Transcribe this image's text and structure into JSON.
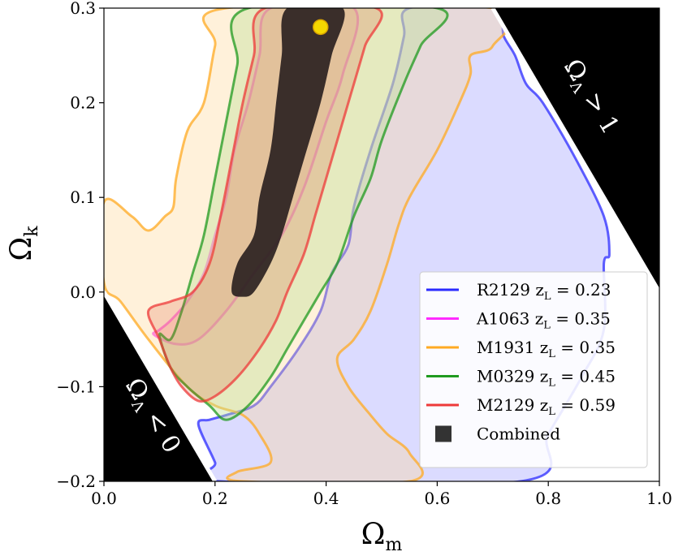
{
  "chart_data": {
    "type": "contour",
    "xlabel": "Ω",
    "xlabel_sub": "m",
    "ylabel": "Ω",
    "ylabel_sub": "k",
    "xlim": [
      0.0,
      1.0
    ],
    "ylim": [
      -0.2,
      0.3
    ],
    "xticks": [
      "0.0",
      "0.2",
      "0.4",
      "0.6",
      "0.8",
      "1.0"
    ],
    "yticks": [
      "−0.2",
      "−0.1",
      "0.0",
      "0.1",
      "0.2",
      "0.3"
    ],
    "xtick_values": [
      0.0,
      0.2,
      0.4,
      0.6,
      0.8,
      1.0
    ],
    "ytick_values": [
      -0.2,
      -0.1,
      0.0,
      0.1,
      0.2,
      0.3
    ],
    "excluded_regions": [
      {
        "name": "lower-left",
        "label": "Ω",
        "sub": "Λ",
        "rest": " < 0",
        "corners": [
          [
            0.0,
            0.0
          ],
          [
            0.0,
            -0.2
          ],
          [
            0.2,
            -0.2
          ]
        ]
      },
      {
        "name": "upper-right",
        "label": "Ω",
        "sub": "Λ",
        "rest": " > 1",
        "corners": [
          [
            0.7,
            0.3
          ],
          [
            1.0,
            0.3
          ],
          [
            1.0,
            0.0
          ]
        ]
      }
    ],
    "fiducial_point": {
      "x": 0.39,
      "y": 0.28,
      "color": "#f5d800"
    },
    "series": [
      {
        "name": "R2129",
        "label": "R2129 z",
        "sub": "L",
        "value": " = 0.23",
        "color": "#2b2bff",
        "fill": "rgba(160,160,255,0.38)",
        "outline": [
          [
            0.55,
            0.3
          ],
          [
            0.54,
            0.27
          ],
          [
            0.52,
            0.22
          ],
          [
            0.48,
            0.15
          ],
          [
            0.45,
            0.09
          ],
          [
            0.44,
            0.05
          ],
          [
            0.41,
            0.02
          ],
          [
            0.39,
            -0.02
          ],
          [
            0.35,
            -0.06
          ],
          [
            0.3,
            -0.1
          ],
          [
            0.27,
            -0.12
          ],
          [
            0.22,
            -0.13
          ],
          [
            0.19,
            -0.135
          ],
          [
            0.17,
            -0.14
          ],
          [
            0.2,
            -0.18
          ],
          [
            0.21,
            -0.2
          ],
          [
            0.75,
            -0.2
          ],
          [
            0.8,
            -0.15
          ],
          [
            0.86,
            -0.09
          ],
          [
            0.9,
            -0.04
          ],
          [
            0.9,
            0.03
          ],
          [
            0.91,
            0.04
          ],
          [
            0.9,
            0.08
          ],
          [
            0.85,
            0.14
          ],
          [
            0.79,
            0.2
          ],
          [
            0.76,
            0.22
          ],
          [
            0.74,
            0.25
          ],
          [
            0.72,
            0.27
          ],
          [
            0.7,
            0.3
          ]
        ]
      },
      {
        "name": "A1063",
        "label": "A1063 z",
        "sub": "L",
        "value": " = 0.35",
        "color": "#ff2bff",
        "fill": "rgba(255,140,180,0.28)",
        "outline": [
          [
            0.3,
            0.3
          ],
          [
            0.28,
            0.25
          ],
          [
            0.26,
            0.2
          ],
          [
            0.235,
            0.15
          ],
          [
            0.22,
            0.1
          ],
          [
            0.2,
            0.06
          ],
          [
            0.18,
            0.02
          ],
          [
            0.15,
            -0.01
          ],
          [
            0.12,
            -0.03
          ],
          [
            0.1,
            -0.04
          ],
          [
            0.09,
            -0.045
          ],
          [
            0.13,
            -0.055
          ],
          [
            0.17,
            -0.05
          ],
          [
            0.22,
            -0.02
          ],
          [
            0.27,
            0.02
          ],
          [
            0.32,
            0.06
          ],
          [
            0.36,
            0.11
          ],
          [
            0.4,
            0.18
          ],
          [
            0.43,
            0.23
          ],
          [
            0.45,
            0.3
          ]
        ]
      },
      {
        "name": "M1931",
        "label": "M1931 z",
        "sub": "L",
        "value": " = 0.35",
        "color": "#ffaa22",
        "fill": "rgba(255,215,150,0.35)",
        "outline": [
          [
            0.22,
            0.3
          ],
          [
            0.2,
            0.26
          ],
          [
            0.18,
            0.2
          ],
          [
            0.15,
            0.17
          ],
          [
            0.13,
            0.12
          ],
          [
            0.125,
            0.09
          ],
          [
            0.11,
            0.08
          ],
          [
            0.08,
            0.065
          ],
          [
            0.05,
            0.08
          ],
          [
            0.0,
            0.095
          ],
          [
            0.0,
            0.01
          ],
          [
            0.03,
            -0.01
          ],
          [
            0.08,
            -0.05
          ],
          [
            0.15,
            -0.1
          ],
          [
            0.2,
            -0.12
          ],
          [
            0.25,
            -0.13
          ],
          [
            0.28,
            -0.15
          ],
          [
            0.3,
            -0.18
          ],
          [
            0.24,
            -0.19
          ],
          [
            0.25,
            -0.2
          ],
          [
            0.55,
            -0.2
          ],
          [
            0.55,
            -0.17
          ],
          [
            0.51,
            -0.15
          ],
          [
            0.48,
            -0.13
          ],
          [
            0.44,
            -0.1
          ],
          [
            0.42,
            -0.07
          ],
          [
            0.45,
            -0.05
          ],
          [
            0.48,
            -0.02
          ],
          [
            0.51,
            0.03
          ],
          [
            0.53,
            0.07
          ],
          [
            0.55,
            0.1
          ],
          [
            0.6,
            0.15
          ],
          [
            0.64,
            0.2
          ],
          [
            0.66,
            0.23
          ],
          [
            0.66,
            0.25
          ],
          [
            0.7,
            0.26
          ],
          [
            0.7,
            0.3
          ]
        ]
      },
      {
        "name": "M0329",
        "label": "M0329 z",
        "sub": "L",
        "value": " = 0.45",
        "color": "#1f9a1f",
        "fill": "rgba(190,225,150,0.4)",
        "outline": [
          [
            0.26,
            0.3
          ],
          [
            0.24,
            0.24
          ],
          [
            0.22,
            0.18
          ],
          [
            0.2,
            0.12
          ],
          [
            0.18,
            0.06
          ],
          [
            0.16,
            0.02
          ],
          [
            0.14,
            -0.02
          ],
          [
            0.12,
            -0.05
          ],
          [
            0.1,
            -0.045
          ],
          [
            0.12,
            -0.08
          ],
          [
            0.15,
            -0.1
          ],
          [
            0.19,
            -0.12
          ],
          [
            0.22,
            -0.135
          ],
          [
            0.26,
            -0.12
          ],
          [
            0.3,
            -0.09
          ],
          [
            0.33,
            -0.06
          ],
          [
            0.36,
            -0.03
          ],
          [
            0.39,
            0.0
          ],
          [
            0.42,
            0.03
          ],
          [
            0.45,
            0.08
          ],
          [
            0.48,
            0.12
          ],
          [
            0.5,
            0.16
          ],
          [
            0.54,
            0.22
          ],
          [
            0.57,
            0.26
          ],
          [
            0.6,
            0.3
          ]
        ]
      },
      {
        "name": "M2129",
        "label": "M2129 z",
        "sub": "L",
        "value": " = 0.59",
        "color": "#ee3a3a",
        "fill": "rgba(220,90,60,0.22)",
        "outline": [
          [
            0.29,
            0.3
          ],
          [
            0.27,
            0.25
          ],
          [
            0.25,
            0.2
          ],
          [
            0.23,
            0.14
          ],
          [
            0.21,
            0.08
          ],
          [
            0.19,
            0.03
          ],
          [
            0.16,
            0.0
          ],
          [
            0.12,
            -0.01
          ],
          [
            0.08,
            -0.02
          ],
          [
            0.1,
            -0.05
          ],
          [
            0.12,
            -0.08
          ],
          [
            0.14,
            -0.1
          ],
          [
            0.17,
            -0.115
          ],
          [
            0.2,
            -0.11
          ],
          [
            0.24,
            -0.09
          ],
          [
            0.28,
            -0.06
          ],
          [
            0.31,
            -0.03
          ],
          [
            0.33,
            0.0
          ],
          [
            0.36,
            0.04
          ],
          [
            0.38,
            0.08
          ],
          [
            0.4,
            0.12
          ],
          [
            0.43,
            0.18
          ],
          [
            0.45,
            0.22
          ],
          [
            0.47,
            0.26
          ],
          [
            0.49,
            0.3
          ]
        ]
      },
      {
        "name": "Combined",
        "label": "Combined",
        "sub": "",
        "value": "",
        "color": "#333333",
        "fill": "rgba(40,30,30,0.9)",
        "marker": "square",
        "outline": [
          [
            0.33,
            0.3
          ],
          [
            0.32,
            0.25
          ],
          [
            0.31,
            0.2
          ],
          [
            0.3,
            0.15
          ],
          [
            0.28,
            0.1
          ],
          [
            0.27,
            0.06
          ],
          [
            0.24,
            0.03
          ],
          [
            0.23,
            0.0
          ],
          [
            0.25,
            -0.005
          ],
          [
            0.27,
            0.0
          ],
          [
            0.3,
            0.03
          ],
          [
            0.32,
            0.06
          ],
          [
            0.34,
            0.1
          ],
          [
            0.36,
            0.14
          ],
          [
            0.39,
            0.2
          ],
          [
            0.41,
            0.25
          ],
          [
            0.43,
            0.3
          ]
        ]
      }
    ],
    "legend_position": "lower-right"
  }
}
